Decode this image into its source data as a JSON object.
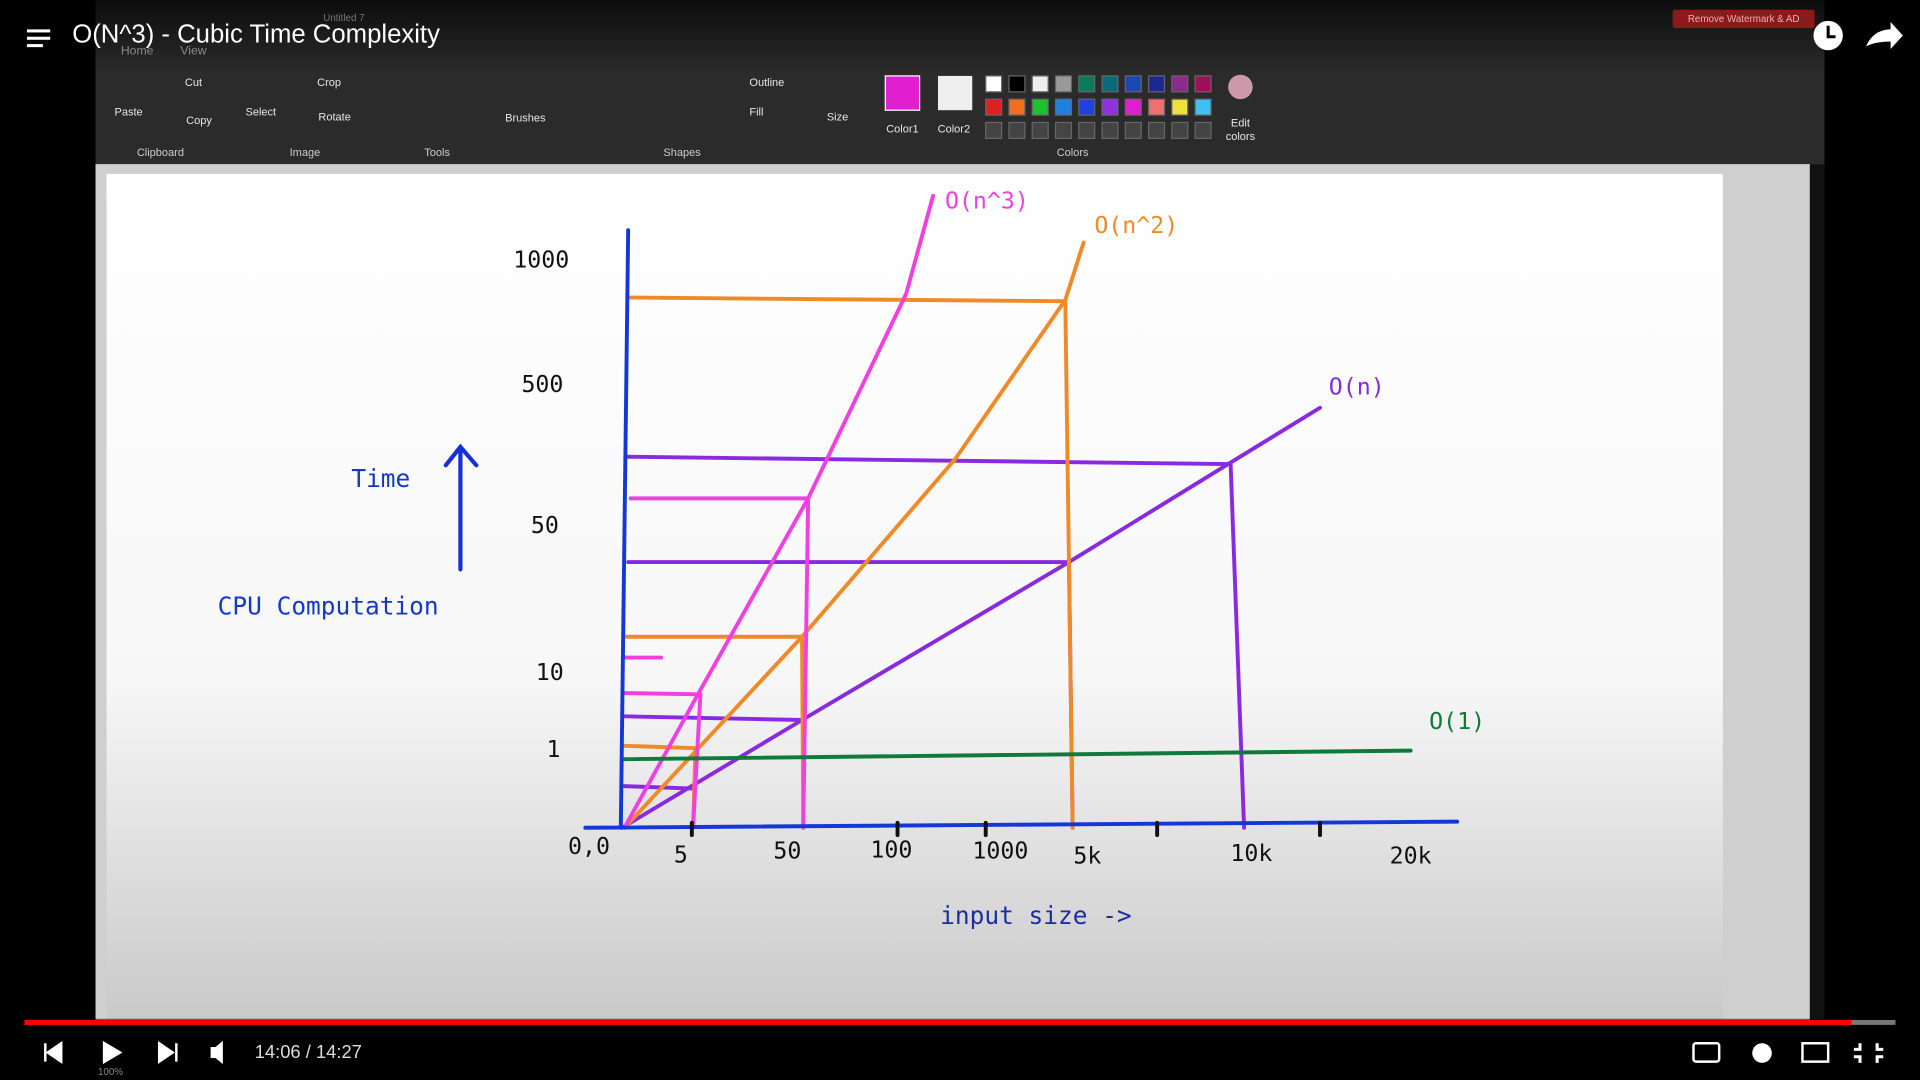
{
  "video": {
    "title": "O(N^3) - Cubic Time Complexity",
    "time": "14:06 / 14:27"
  },
  "paint": {
    "document": "Untitled 7",
    "tabs": [
      "Home",
      "View"
    ],
    "watermark": "Remove Watermark & AD",
    "buttons": [
      "Paste",
      "Cut",
      "Copy",
      "Select",
      "Crop",
      "Rotate",
      "Brushes",
      "Outline",
      "Fill",
      "Size",
      "Color1",
      "Color2",
      "Edit colors"
    ],
    "groups": [
      "Clipboard",
      "Image",
      "Tools",
      "Shapes",
      "Colors"
    ],
    "zoom": "100%"
  },
  "drawing": {
    "y_title": "Time",
    "y_subtitle": "CPU Computation",
    "x_title": "input size ->",
    "origin": "0,0",
    "y_labels": [
      "1000",
      "500",
      "50",
      "10",
      "1"
    ],
    "x_labels": [
      "5",
      "50",
      "100",
      "1000",
      "5k",
      "10k",
      "20k"
    ],
    "curves": [
      "O(n^3)",
      "O(n^2)",
      "O(n)",
      "O(1)"
    ]
  }
}
